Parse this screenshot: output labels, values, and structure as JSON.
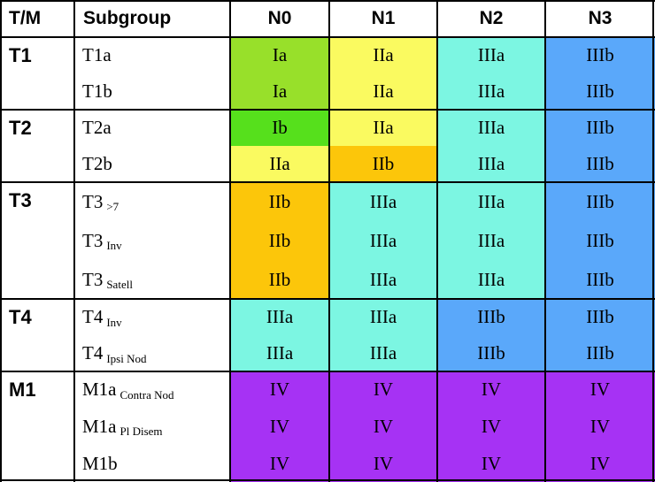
{
  "headers": [
    "T/M",
    "Subgroup",
    "N0",
    "N1",
    "N2",
    "N3"
  ],
  "groups": [
    {
      "label": "T1",
      "rows": [
        {
          "sub": "T1a",
          "sfx": "",
          "stages": [
            "Ia",
            "IIa",
            "IIIa",
            "IIIb"
          ]
        },
        {
          "sub": "T1b",
          "sfx": "",
          "stages": [
            "Ia",
            "IIa",
            "IIIa",
            "IIIb"
          ]
        }
      ]
    },
    {
      "label": "T2",
      "rows": [
        {
          "sub": "T2a",
          "sfx": "",
          "stages": [
            "Ib",
            "IIa",
            "IIIa",
            "IIIb"
          ]
        },
        {
          "sub": "T2b",
          "sfx": "",
          "stages": [
            "IIa",
            "IIb",
            "IIIa",
            "IIIb"
          ]
        }
      ]
    },
    {
      "label": "T3",
      "rows": [
        {
          "sub": "T3",
          "sfx": ">7",
          "stages": [
            "IIb",
            "IIIa",
            "IIIa",
            "IIIb"
          ]
        },
        {
          "sub": "T3",
          "sfx": "Inv",
          "stages": [
            "IIb",
            "IIIa",
            "IIIa",
            "IIIb"
          ]
        },
        {
          "sub": "T3",
          "sfx": "Satell",
          "stages": [
            "IIb",
            "IIIa",
            "IIIa",
            "IIIb"
          ]
        }
      ]
    },
    {
      "label": "T4",
      "rows": [
        {
          "sub": "T4",
          "sfx": "Inv",
          "stages": [
            "IIIa",
            "IIIa",
            "IIIb",
            "IIIb"
          ]
        },
        {
          "sub": "T4",
          "sfx": "Ipsi Nod",
          "stages": [
            "IIIa",
            "IIIa",
            "IIIb",
            "IIIb"
          ]
        }
      ]
    },
    {
      "label": "M1",
      "rows": [
        {
          "sub": "M1a",
          "sfx": "Contra Nod",
          "stages": [
            "IV",
            "IV",
            "IV",
            "IV"
          ]
        },
        {
          "sub": "M1a",
          "sfx": "Pl Disem",
          "stages": [
            "IV",
            "IV",
            "IV",
            "IV"
          ]
        },
        {
          "sub": "M1b",
          "sfx": "",
          "stages": [
            "IV",
            "IV",
            "IV",
            "IV"
          ]
        }
      ]
    }
  ],
  "stage_colors": {
    "Ia": "#98e02a",
    "Ib": "#56e01c",
    "IIa": "#fafa60",
    "IIb": "#fcc60a",
    "IIIa": "#7cf6e2",
    "IIIb": "#5aa8fa",
    "IV": "#a632f4"
  }
}
